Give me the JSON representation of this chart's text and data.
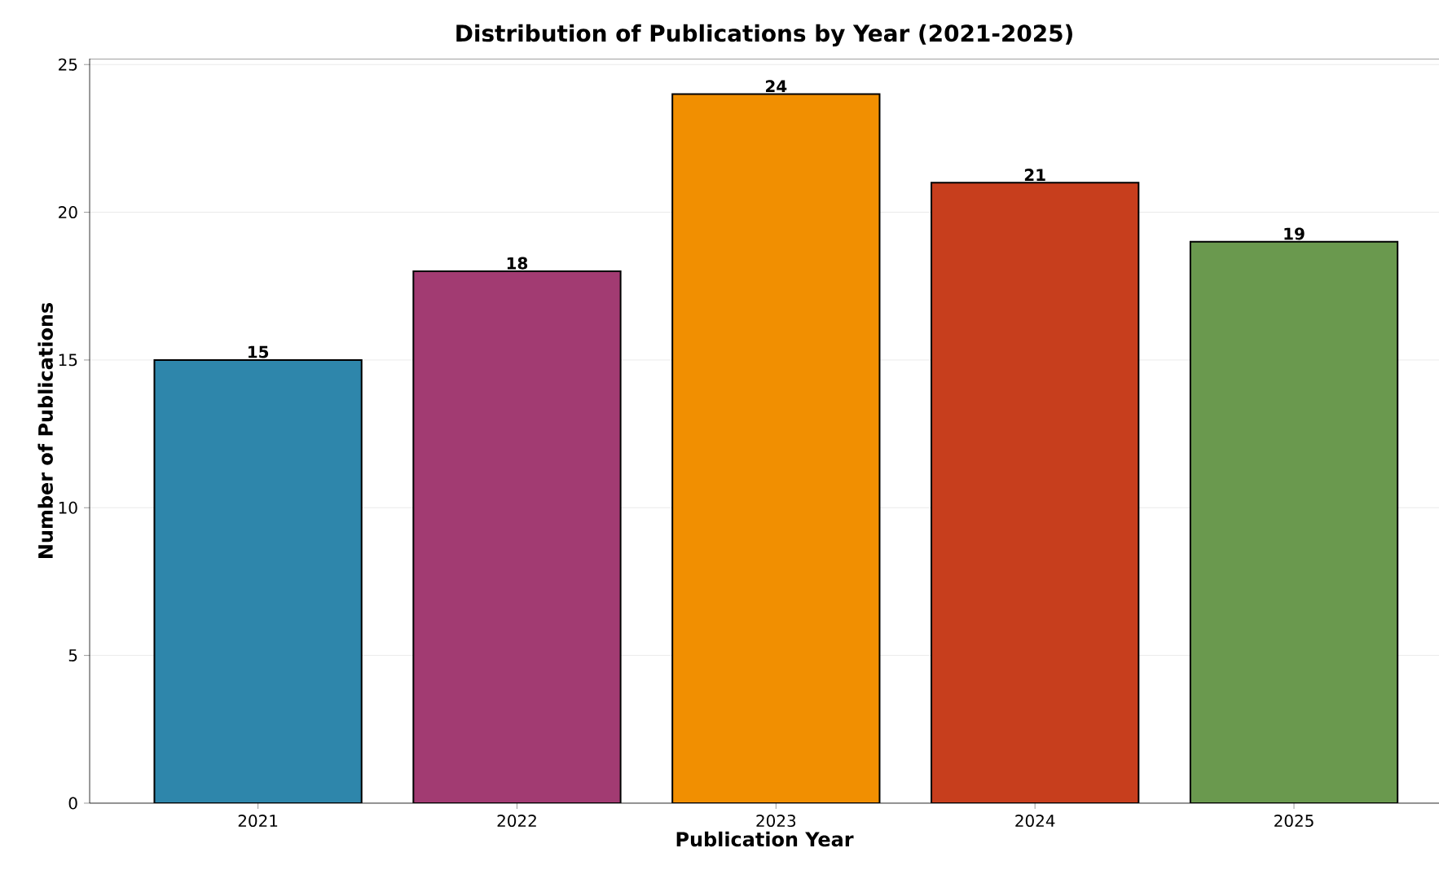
{
  "chart_data": {
    "type": "bar",
    "title": "Distribution of Publications by Year (2021-2025)",
    "xlabel": "Publication Year",
    "ylabel": "Number of Publications",
    "categories": [
      "2021",
      "2022",
      "2023",
      "2024",
      "2025"
    ],
    "values": [
      15,
      18,
      24,
      21,
      19
    ],
    "colors": [
      "#2e86ab",
      "#a23b72",
      "#f18f01",
      "#c73e1d",
      "#6a994e"
    ],
    "ylim": [
      0,
      25.2
    ],
    "yticks": [
      0,
      5,
      10,
      15,
      20,
      25
    ],
    "grid": "y",
    "data_labels": true
  }
}
